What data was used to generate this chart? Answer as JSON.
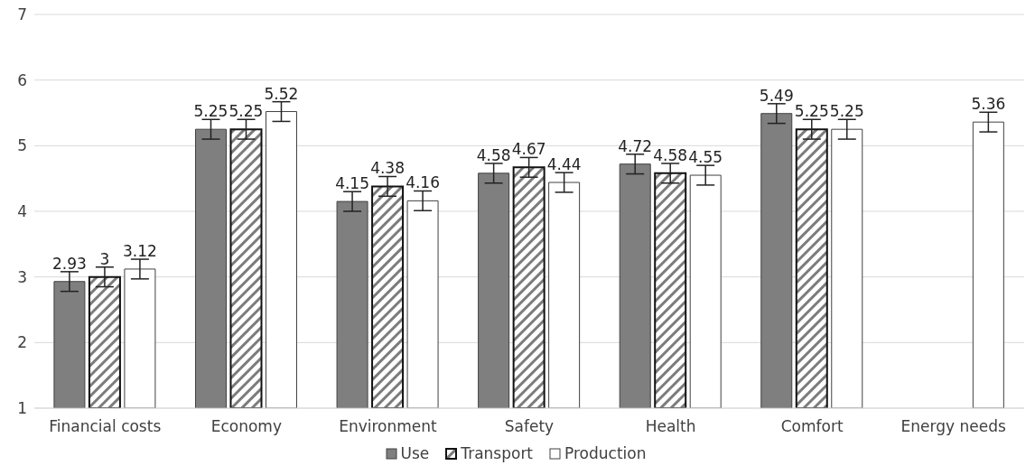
{
  "chart_data": {
    "type": "bar",
    "categories": [
      "Financial costs",
      "Economy",
      "Environment",
      "Safety",
      "Health",
      "Comfort",
      "Energy needs"
    ],
    "series": [
      {
        "name": "Use",
        "color": "#7f7f7f",
        "values": [
          2.93,
          5.25,
          4.15,
          4.58,
          4.72,
          5.49,
          null
        ],
        "errors": [
          0.15,
          0.15,
          0.15,
          0.15,
          0.15,
          0.15,
          null
        ]
      },
      {
        "name": "Transport",
        "color": "#111111",
        "values": [
          3,
          5.25,
          4.38,
          4.67,
          4.58,
          5.25,
          null
        ],
        "errors": [
          0.15,
          0.15,
          0.15,
          0.15,
          0.15,
          0.15,
          null
        ]
      },
      {
        "name": "Production",
        "color": "#ffffff",
        "values": [
          3.12,
          5.52,
          4.16,
          4.44,
          4.55,
          5.25,
          5.36
        ],
        "errors": [
          0.15,
          0.15,
          0.15,
          0.15,
          0.15,
          0.15,
          0.15
        ]
      }
    ],
    "ylim": [
      1,
      7
    ],
    "yticks": [
      1,
      2,
      3,
      4,
      5,
      6,
      7
    ],
    "grid": "y",
    "legend": "bottom",
    "data_labels": true
  }
}
